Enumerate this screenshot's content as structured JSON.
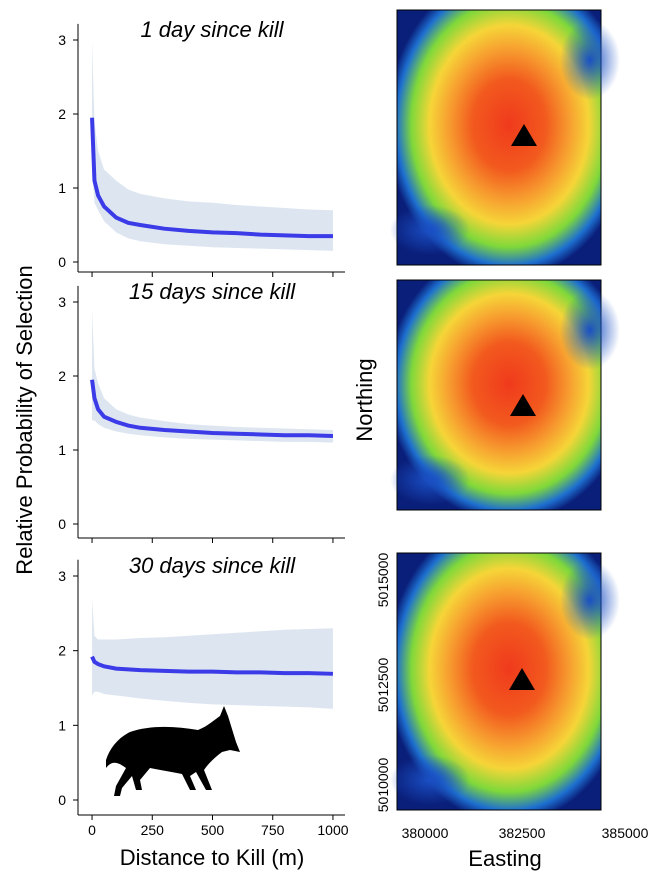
{
  "chart_data": [
    {
      "type": "line",
      "title": "1 day since kill",
      "x": [
        0,
        10,
        25,
        50,
        100,
        150,
        200,
        300,
        400,
        500,
        600,
        700,
        800,
        900,
        1000
      ],
      "series": [
        {
          "color": "#3b3be8",
          "band_color": "#dde6f0",
          "values": [
            1.95,
            1.1,
            0.9,
            0.75,
            0.6,
            0.53,
            0.5,
            0.45,
            0.42,
            0.4,
            0.39,
            0.37,
            0.36,
            0.35,
            0.35
          ],
          "upper": [
            3.0,
            1.9,
            1.5,
            1.25,
            1.1,
            0.98,
            0.92,
            0.86,
            0.82,
            0.8,
            0.77,
            0.75,
            0.73,
            0.71,
            0.7
          ],
          "lower": [
            1.3,
            0.8,
            0.7,
            0.55,
            0.4,
            0.32,
            0.28,
            0.24,
            0.22,
            0.2,
            0.19,
            0.18,
            0.17,
            0.16,
            0.15
          ]
        }
      ],
      "xlim": [
        -50,
        1050
      ],
      "ylim": [
        -0.05,
        3.15
      ],
      "yticks": [
        0,
        1,
        2,
        3
      ]
    },
    {
      "type": "line",
      "title": "15 days since kill",
      "ylabel": "Relative Probability of Selection",
      "x": [
        0,
        10,
        25,
        50,
        100,
        150,
        200,
        300,
        400,
        500,
        600,
        700,
        800,
        900,
        1000
      ],
      "series": [
        {
          "color": "#3b3be8",
          "band_color": "#dde6f0",
          "values": [
            1.95,
            1.7,
            1.55,
            1.45,
            1.38,
            1.33,
            1.3,
            1.27,
            1.25,
            1.23,
            1.22,
            1.21,
            1.2,
            1.2,
            1.19
          ],
          "upper": [
            2.9,
            2.1,
            1.9,
            1.7,
            1.55,
            1.48,
            1.44,
            1.39,
            1.35,
            1.33,
            1.31,
            1.3,
            1.29,
            1.28,
            1.27
          ],
          "lower": [
            1.4,
            1.4,
            1.35,
            1.3,
            1.25,
            1.22,
            1.2,
            1.17,
            1.15,
            1.14,
            1.13,
            1.12,
            1.11,
            1.11,
            1.1
          ]
        }
      ],
      "xlim": [
        -50,
        1050
      ],
      "ylim": [
        -0.05,
        3.15
      ],
      "yticks": [
        0,
        1,
        2,
        3
      ]
    },
    {
      "type": "line",
      "title": "30 days since kill",
      "xlabel": "Distance to Kill (m)",
      "x": [
        0,
        10,
        25,
        50,
        100,
        150,
        200,
        300,
        400,
        500,
        600,
        700,
        800,
        900,
        1000
      ],
      "series": [
        {
          "color": "#3b3be8",
          "band_color": "#dde6f0",
          "values": [
            1.92,
            1.85,
            1.82,
            1.79,
            1.76,
            1.75,
            1.74,
            1.73,
            1.72,
            1.72,
            1.71,
            1.71,
            1.7,
            1.7,
            1.69
          ],
          "upper": [
            2.7,
            2.2,
            2.15,
            2.15,
            2.15,
            2.16,
            2.17,
            2.18,
            2.2,
            2.22,
            2.24,
            2.26,
            2.28,
            2.29,
            2.3
          ],
          "lower": [
            1.4,
            1.45,
            1.45,
            1.42,
            1.4,
            1.38,
            1.36,
            1.33,
            1.3,
            1.28,
            1.27,
            1.26,
            1.25,
            1.24,
            1.22
          ]
        }
      ],
      "xlim": [
        -50,
        1050
      ],
      "ylim": [
        -0.05,
        3.15
      ],
      "yticks": [
        0,
        1,
        2,
        3
      ],
      "xticks": [
        0,
        250,
        500,
        750,
        1000
      ]
    }
  ],
  "map_axes": {
    "xlabel": "Easting",
    "ylabel": "Northing",
    "xticks": [
      380000,
      382500,
      385000
    ],
    "yticks": [
      5015000,
      5012500,
      5010000
    ]
  }
}
